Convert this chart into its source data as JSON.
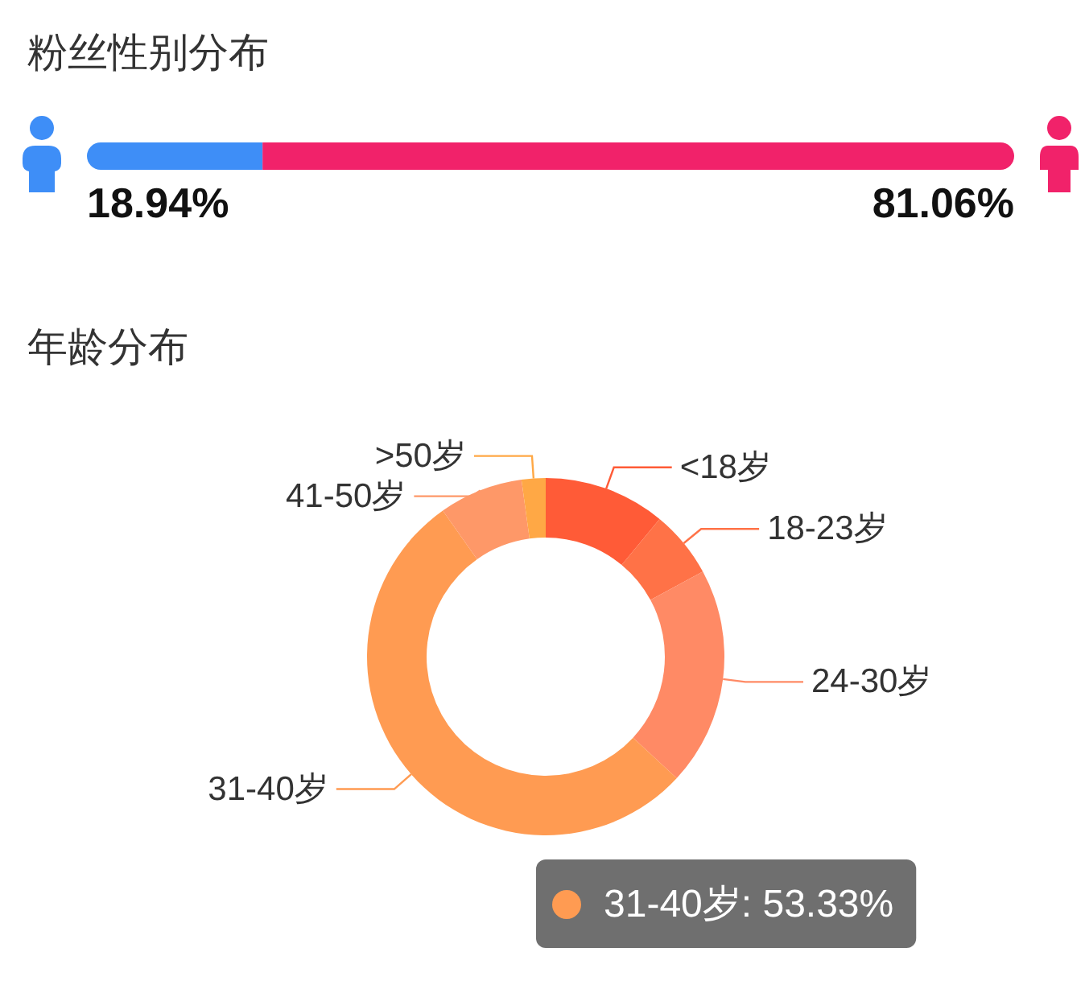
{
  "chart_data": [
    {
      "type": "bar",
      "title": "粉丝性别分布",
      "orientation": "horizontal",
      "stacked": true,
      "categories": [
        null
      ],
      "series": [
        {
          "color": "#3e8ef7",
          "values": [
            18.94
          ],
          "value_labels": [
            "18.94%"
          ]
        },
        {
          "color": "#f1226a",
          "values": [
            81.06
          ],
          "value_labels": [
            "81.06%"
          ]
        }
      ]
    },
    {
      "type": "donut",
      "title": "年龄分布",
      "categories": [
        "<18岁",
        "18-23岁",
        "24-30岁",
        "31-40岁",
        "41-50岁",
        ">50岁"
      ],
      "values": [
        11.0,
        6.1,
        19.8,
        53.33,
        7.6,
        2.17
      ],
      "colors": [
        "#ff5b37",
        "#ff7247",
        "#ff8a65",
        "#ff9b52",
        "#fe9868",
        "#ffa845"
      ],
      "value_labels": [
        null,
        null,
        null,
        "31-40岁: 53.33%",
        null,
        null
      ]
    }
  ]
}
